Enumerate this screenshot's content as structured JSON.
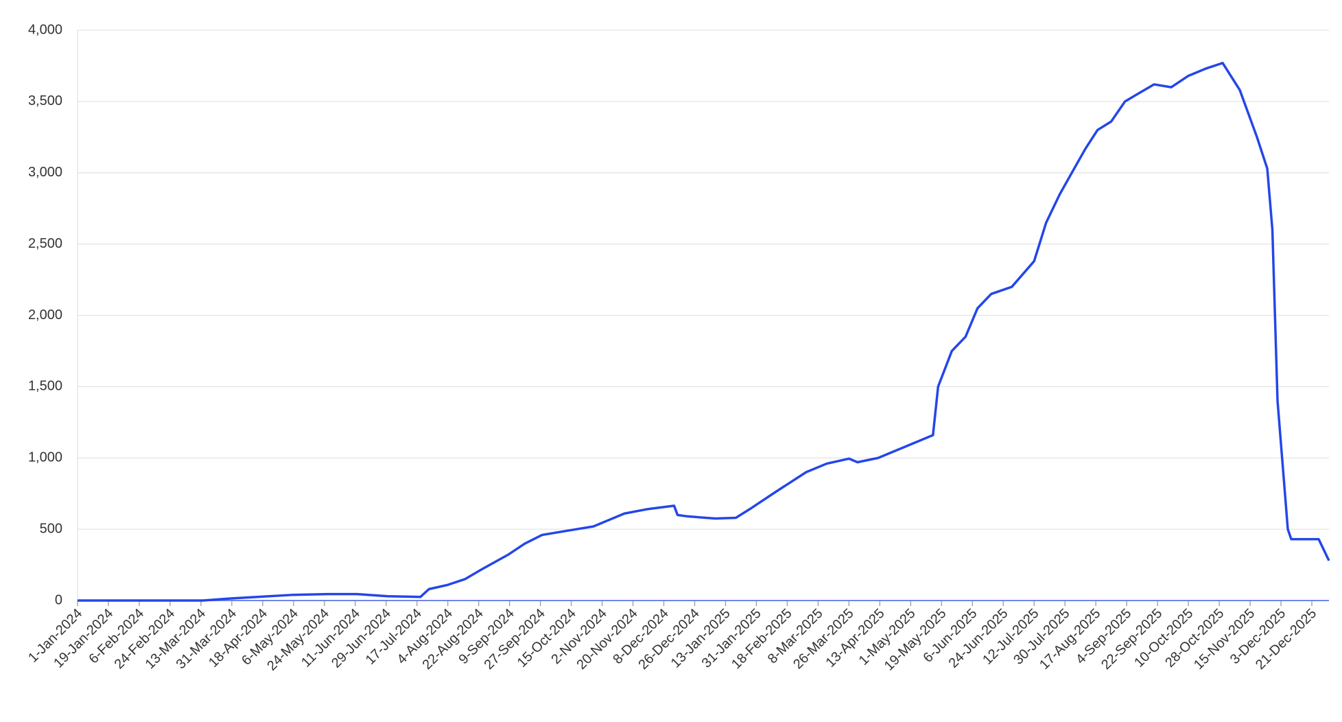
{
  "chart_data": {
    "type": "line",
    "x": [
      "2024-01-01",
      "2024-03-14",
      "2024-03-31",
      "2024-05-06",
      "2024-05-26",
      "2024-06-12",
      "2024-06-30",
      "2024-07-19",
      "2024-07-24",
      "2024-08-04",
      "2024-08-14",
      "2024-08-24",
      "2024-09-08",
      "2024-09-18",
      "2024-09-28",
      "2024-10-13",
      "2024-10-28",
      "2024-11-15",
      "2024-11-28",
      "2024-12-14",
      "2024-12-16",
      "2024-12-22",
      "2025-01-07",
      "2025-01-19",
      "2025-01-27",
      "2025-02-11",
      "2025-03-01",
      "2025-03-13",
      "2025-03-26",
      "2025-03-31",
      "2025-04-12",
      "2025-05-02",
      "2025-05-14",
      "2025-05-17",
      "2025-05-25",
      "2025-06-02",
      "2025-06-09",
      "2025-06-17",
      "2025-06-29",
      "2025-07-12",
      "2025-07-19",
      "2025-07-27",
      "2025-08-03",
      "2025-08-11",
      "2025-08-18",
      "2025-08-26",
      "2025-09-03",
      "2025-09-10",
      "2025-09-20",
      "2025-09-30",
      "2025-10-10",
      "2025-10-20",
      "2025-10-30",
      "2025-11-09",
      "2025-11-19",
      "2025-11-25",
      "2025-11-28",
      "2025-12-01",
      "2025-12-07",
      "2025-12-09",
      "2025-12-25",
      "2025-12-31"
    ],
    "series": [
      {
        "color": "#2446e8",
        "values": [
          0,
          0,
          15,
          40,
          45,
          45,
          30,
          25,
          80,
          110,
          150,
          220,
          320,
          400,
          460,
          490,
          520,
          610,
          640,
          665,
          600,
          590,
          575,
          580,
          640,
          760,
          900,
          960,
          995,
          970,
          1000,
          1100,
          1160,
          1500,
          1750,
          1850,
          2050,
          2150,
          2200,
          2380,
          2650,
          2850,
          3000,
          3170,
          3300,
          3360,
          3500,
          3550,
          3620,
          3600,
          3680,
          3730,
          3770,
          3580,
          3250,
          3030,
          2600,
          1400,
          500,
          430,
          430,
          280
        ]
      }
    ],
    "xlim": [
      "2024-01-01",
      "2025-12-31"
    ],
    "xticks": [
      {
        "value": "2024-01-01",
        "label": "1-Jan-2024"
      },
      {
        "value": "2024-01-19",
        "label": "19-Jan-2024"
      },
      {
        "value": "2024-02-06",
        "label": "6-Feb-2024"
      },
      {
        "value": "2024-02-24",
        "label": "24-Feb-2024"
      },
      {
        "value": "2024-03-13",
        "label": "13-Mar-2024"
      },
      {
        "value": "2024-03-31",
        "label": "31-Mar-2024"
      },
      {
        "value": "2024-04-18",
        "label": "18-Apr-2024"
      },
      {
        "value": "2024-05-06",
        "label": "6-May-2024"
      },
      {
        "value": "2024-05-24",
        "label": "24-May-2024"
      },
      {
        "value": "2024-06-11",
        "label": "11-Jun-2024"
      },
      {
        "value": "2024-06-29",
        "label": "29-Jun-2024"
      },
      {
        "value": "2024-07-17",
        "label": "17-Jul-2024"
      },
      {
        "value": "2024-08-04",
        "label": "4-Aug-2024"
      },
      {
        "value": "2024-08-22",
        "label": "22-Aug-2024"
      },
      {
        "value": "2024-09-09",
        "label": "9-Sep-2024"
      },
      {
        "value": "2024-09-27",
        "label": "27-Sep-2024"
      },
      {
        "value": "2024-10-15",
        "label": "15-Oct-2024"
      },
      {
        "value": "2024-11-02",
        "label": "2-Nov-2024"
      },
      {
        "value": "2024-11-20",
        "label": "20-Nov-2024"
      },
      {
        "value": "2024-12-08",
        "label": "8-Dec-2024"
      },
      {
        "value": "2024-12-26",
        "label": "26-Dec-2024"
      },
      {
        "value": "2025-01-13",
        "label": "13-Jan-2025"
      },
      {
        "value": "2025-01-31",
        "label": "31-Jan-2025"
      },
      {
        "value": "2025-02-18",
        "label": "18-Feb-2025"
      },
      {
        "value": "2025-03-08",
        "label": "8-Mar-2025"
      },
      {
        "value": "2025-03-26",
        "label": "26-Mar-2025"
      },
      {
        "value": "2025-04-13",
        "label": "13-Apr-2025"
      },
      {
        "value": "2025-05-01",
        "label": "1-May-2025"
      },
      {
        "value": "2025-05-19",
        "label": "19-May-2025"
      },
      {
        "value": "2025-06-06",
        "label": "6-Jun-2025"
      },
      {
        "value": "2025-06-24",
        "label": "24-Jun-2025"
      },
      {
        "value": "2025-07-12",
        "label": "12-Jul-2025"
      },
      {
        "value": "2025-07-30",
        "label": "30-Jul-2025"
      },
      {
        "value": "2025-08-17",
        "label": "17-Aug-2025"
      },
      {
        "value": "2025-09-04",
        "label": "4-Sep-2025"
      },
      {
        "value": "2025-09-22",
        "label": "22-Sep-2025"
      },
      {
        "value": "2025-10-10",
        "label": "10-Oct-2025"
      },
      {
        "value": "2025-10-28",
        "label": "28-Oct-2025"
      },
      {
        "value": "2025-11-15",
        "label": "15-Nov-2025"
      },
      {
        "value": "2025-12-03",
        "label": "3-Dec-2025"
      },
      {
        "value": "2025-12-21",
        "label": "21-Dec-2025"
      }
    ],
    "ylim": [
      0,
      4000
    ],
    "yticks": [
      0,
      500,
      {
        "value": 1000,
        "label": "1,000"
      },
      {
        "value": 1500,
        "label": "1,500"
      },
      {
        "value": 2000,
        "label": "2,000"
      },
      {
        "value": 2500,
        "label": "2,500"
      },
      {
        "value": 3000,
        "label": "3,000"
      },
      {
        "value": 3500,
        "label": "3,500"
      },
      {
        "value": 4000,
        "label": "4,000"
      }
    ],
    "grid": true
  }
}
